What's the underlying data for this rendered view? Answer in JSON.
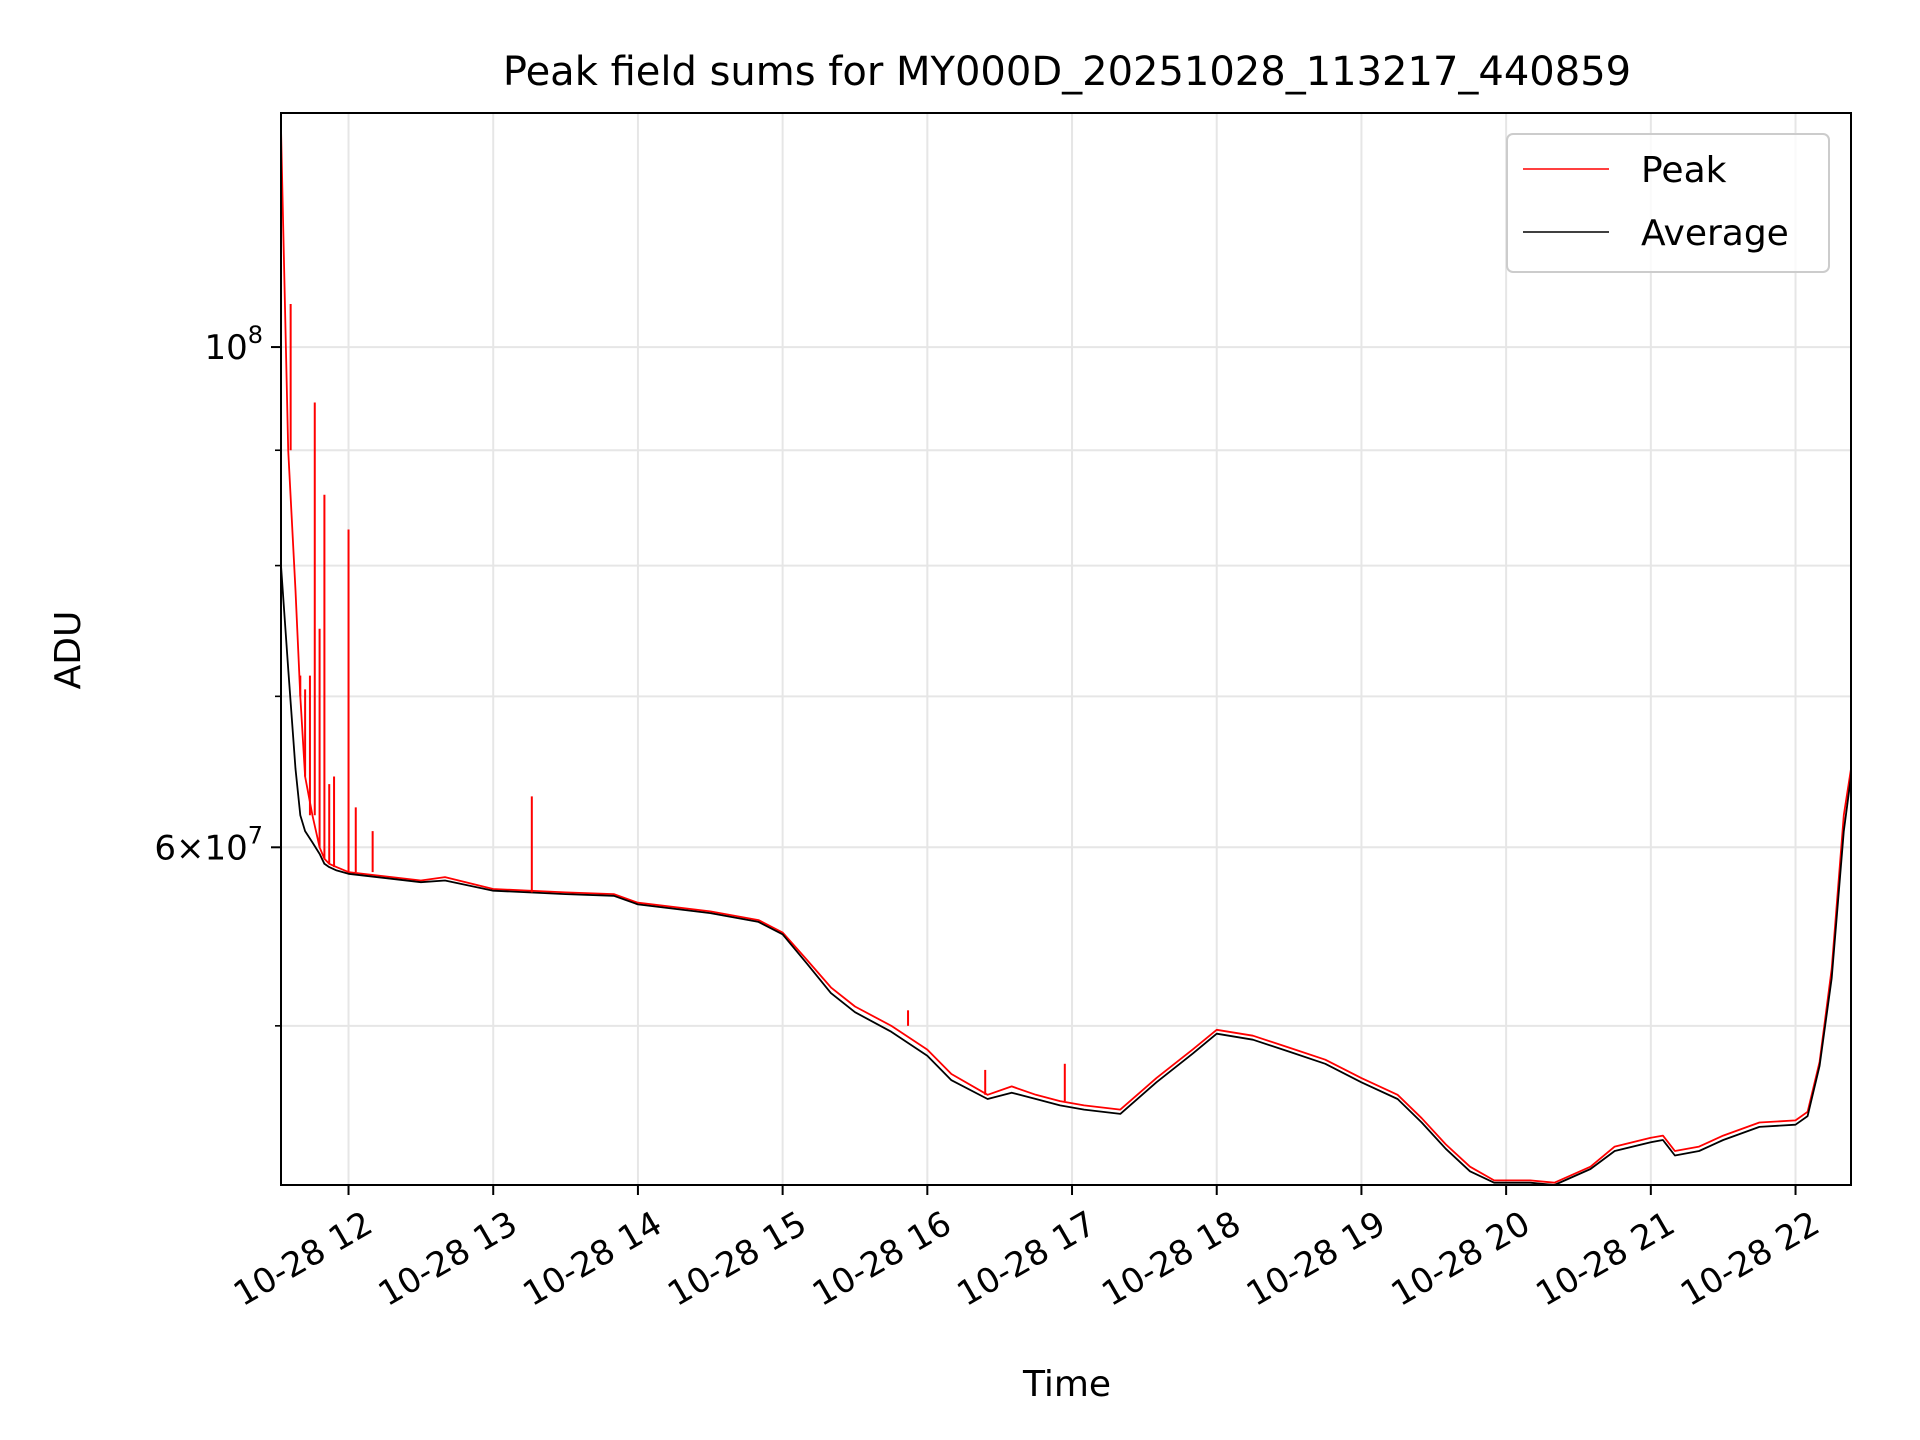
{
  "chart_data": {
    "type": "line",
    "title": "Peak field sums for MY000D_20251028_113217_440859",
    "xlabel": "Time",
    "ylabel": "ADU",
    "yscale": "log",
    "grid": true,
    "legend_position": "top-right",
    "xlim": [
      "2025-10-28 11:32",
      "2025-10-28 22:23"
    ],
    "ylim": [
      42500000,
      127000000
    ],
    "x_ticks": [
      "10-28 12",
      "10-28 13",
      "10-28 14",
      "10-28 15",
      "10-28 16",
      "10-28 17",
      "10-28 18",
      "10-28 19",
      "10-28 20",
      "10-28 21",
      "10-28 22"
    ],
    "x_tick_times": [
      "2025-10-28 12:00",
      "2025-10-28 13:00",
      "2025-10-28 14:00",
      "2025-10-28 15:00",
      "2025-10-28 16:00",
      "2025-10-28 17:00",
      "2025-10-28 18:00",
      "2025-10-28 19:00",
      "2025-10-28 20:00",
      "2025-10-28 21:00",
      "2025-10-28 22:00"
    ],
    "y_major_ticks": [
      {
        "value": 100000000,
        "base": "10",
        "exp": "8"
      },
      {
        "value": 60000000,
        "mant": "6",
        "base": "10",
        "exp": "7"
      }
    ],
    "y_minor_ticks": [
      50000000,
      70000000,
      80000000,
      90000000
    ],
    "series": [
      {
        "name": "Peak",
        "color": "#ff0000",
        "x": [
          "2025-10-28 11:32",
          "2025-10-28 11:35",
          "2025-10-28 11:38",
          "2025-10-28 11:40",
          "2025-10-28 11:42",
          "2025-10-28 11:45",
          "2025-10-28 11:48",
          "2025-10-28 11:50",
          "2025-10-28 11:52",
          "2025-10-28 11:55",
          "2025-10-28 12:00",
          "2025-10-28 12:30",
          "2025-10-28 12:40",
          "2025-10-28 13:00",
          "2025-10-28 13:30",
          "2025-10-28 13:50",
          "2025-10-28 14:00",
          "2025-10-28 14:30",
          "2025-10-28 14:50",
          "2025-10-28 15:00",
          "2025-10-28 15:10",
          "2025-10-28 15:20",
          "2025-10-28 15:30",
          "2025-10-28 15:45",
          "2025-10-28 16:00",
          "2025-10-28 16:10",
          "2025-10-28 16:25",
          "2025-10-28 16:35",
          "2025-10-28 16:45",
          "2025-10-28 16:55",
          "2025-10-28 17:05",
          "2025-10-28 17:20",
          "2025-10-28 17:35",
          "2025-10-28 17:50",
          "2025-10-28 18:00",
          "2025-10-28 18:15",
          "2025-10-28 18:30",
          "2025-10-28 18:45",
          "2025-10-28 19:00",
          "2025-10-28 19:15",
          "2025-10-28 19:25",
          "2025-10-28 19:35",
          "2025-10-28 19:45",
          "2025-10-28 19:55",
          "2025-10-28 20:10",
          "2025-10-28 20:20",
          "2025-10-28 20:35",
          "2025-10-28 20:45",
          "2025-10-28 21:00",
          "2025-10-28 21:05",
          "2025-10-28 21:10",
          "2025-10-28 21:20",
          "2025-10-28 21:30",
          "2025-10-28 21:45",
          "2025-10-28 22:00",
          "2025-10-28 22:05",
          "2025-10-28 22:10",
          "2025-10-28 22:15",
          "2025-10-28 22:20",
          "2025-10-28 22:23"
        ],
        "y": [
          125000000,
          90000000,
          78000000,
          70000000,
          64500000,
          62000000,
          60000000,
          59300000,
          59000000,
          58800000,
          58500000,
          58000000,
          58200000,
          57500000,
          57300000,
          57200000,
          56700000,
          56200000,
          55700000,
          55000000,
          53500000,
          52000000,
          51000000,
          50000000,
          48800000,
          47600000,
          46600000,
          47000000,
          46600000,
          46300000,
          46100000,
          45900000,
          47400000,
          48800000,
          49800000,
          49500000,
          48900000,
          48300000,
          47400000,
          46600000,
          45500000,
          44300000,
          43300000,
          42700000,
          42700000,
          42600000,
          43300000,
          44200000,
          44600000,
          44700000,
          44000000,
          44200000,
          44700000,
          45300000,
          45400000,
          45800000,
          48200000,
          53000000,
          62000000,
          65000000
        ],
        "spikes": [
          {
            "x": "2025-10-28 11:36",
            "y": 104500000
          },
          {
            "x": "2025-10-28 11:40",
            "y": 71500000
          },
          {
            "x": "2025-10-28 11:42",
            "y": 70500000
          },
          {
            "x": "2025-10-28 11:44",
            "y": 71500000
          },
          {
            "x": "2025-10-28 11:46",
            "y": 94500000
          },
          {
            "x": "2025-10-28 11:48",
            "y": 75000000
          },
          {
            "x": "2025-10-28 11:50",
            "y": 86000000
          },
          {
            "x": "2025-10-28 11:52",
            "y": 64000000
          },
          {
            "x": "2025-10-28 11:54",
            "y": 64500000
          },
          {
            "x": "2025-10-28 12:00",
            "y": 83000000
          },
          {
            "x": "2025-10-28 12:03",
            "y": 62500000
          },
          {
            "x": "2025-10-28 12:10",
            "y": 61000000
          },
          {
            "x": "2025-10-28 13:16",
            "y": 63200000
          },
          {
            "x": "2025-10-28 15:52",
            "y": 50800000
          },
          {
            "x": "2025-10-28 16:24",
            "y": 47800000
          },
          {
            "x": "2025-10-28 16:57",
            "y": 48100000
          }
        ]
      },
      {
        "name": "Average",
        "color": "#000000",
        "x": [
          "2025-10-28 11:32",
          "2025-10-28 11:35",
          "2025-10-28 11:38",
          "2025-10-28 11:40",
          "2025-10-28 11:42",
          "2025-10-28 11:45",
          "2025-10-28 11:48",
          "2025-10-28 11:50",
          "2025-10-28 11:52",
          "2025-10-28 11:55",
          "2025-10-28 12:00",
          "2025-10-28 12:30",
          "2025-10-28 12:40",
          "2025-10-28 13:00",
          "2025-10-28 13:30",
          "2025-10-28 13:50",
          "2025-10-28 14:00",
          "2025-10-28 14:30",
          "2025-10-28 14:50",
          "2025-10-28 15:00",
          "2025-10-28 15:10",
          "2025-10-28 15:20",
          "2025-10-28 15:30",
          "2025-10-28 15:45",
          "2025-10-28 16:00",
          "2025-10-28 16:10",
          "2025-10-28 16:25",
          "2025-10-28 16:35",
          "2025-10-28 16:45",
          "2025-10-28 16:55",
          "2025-10-28 17:05",
          "2025-10-28 17:20",
          "2025-10-28 17:35",
          "2025-10-28 17:50",
          "2025-10-28 18:00",
          "2025-10-28 18:15",
          "2025-10-28 18:30",
          "2025-10-28 18:45",
          "2025-10-28 19:00",
          "2025-10-28 19:15",
          "2025-10-28 19:25",
          "2025-10-28 19:35",
          "2025-10-28 19:45",
          "2025-10-28 19:55",
          "2025-10-28 20:10",
          "2025-10-28 20:20",
          "2025-10-28 20:35",
          "2025-10-28 20:45",
          "2025-10-28 21:00",
          "2025-10-28 21:05",
          "2025-10-28 21:10",
          "2025-10-28 21:20",
          "2025-10-28 21:30",
          "2025-10-28 21:45",
          "2025-10-28 22:00",
          "2025-10-28 22:05",
          "2025-10-28 22:10",
          "2025-10-28 22:15",
          "2025-10-28 22:20",
          "2025-10-28 22:23"
        ],
        "y": [
          80000000,
          72000000,
          65000000,
          62000000,
          61000000,
          60300000,
          59600000,
          59000000,
          58800000,
          58600000,
          58400000,
          57900000,
          58000000,
          57400000,
          57200000,
          57100000,
          56600000,
          56100000,
          55600000,
          54900000,
          53300000,
          51700000,
          50700000,
          49700000,
          48500000,
          47300000,
          46400000,
          46700000,
          46400000,
          46100000,
          45900000,
          45700000,
          47200000,
          48600000,
          49600000,
          49300000,
          48700000,
          48100000,
          47200000,
          46400000,
          45300000,
          44100000,
          43100000,
          42600000,
          42600000,
          42500000,
          43200000,
          44000000,
          44400000,
          44500000,
          43800000,
          44000000,
          44500000,
          45100000,
          45200000,
          45600000,
          48000000,
          52500000,
          61000000,
          64500000
        ]
      }
    ]
  }
}
